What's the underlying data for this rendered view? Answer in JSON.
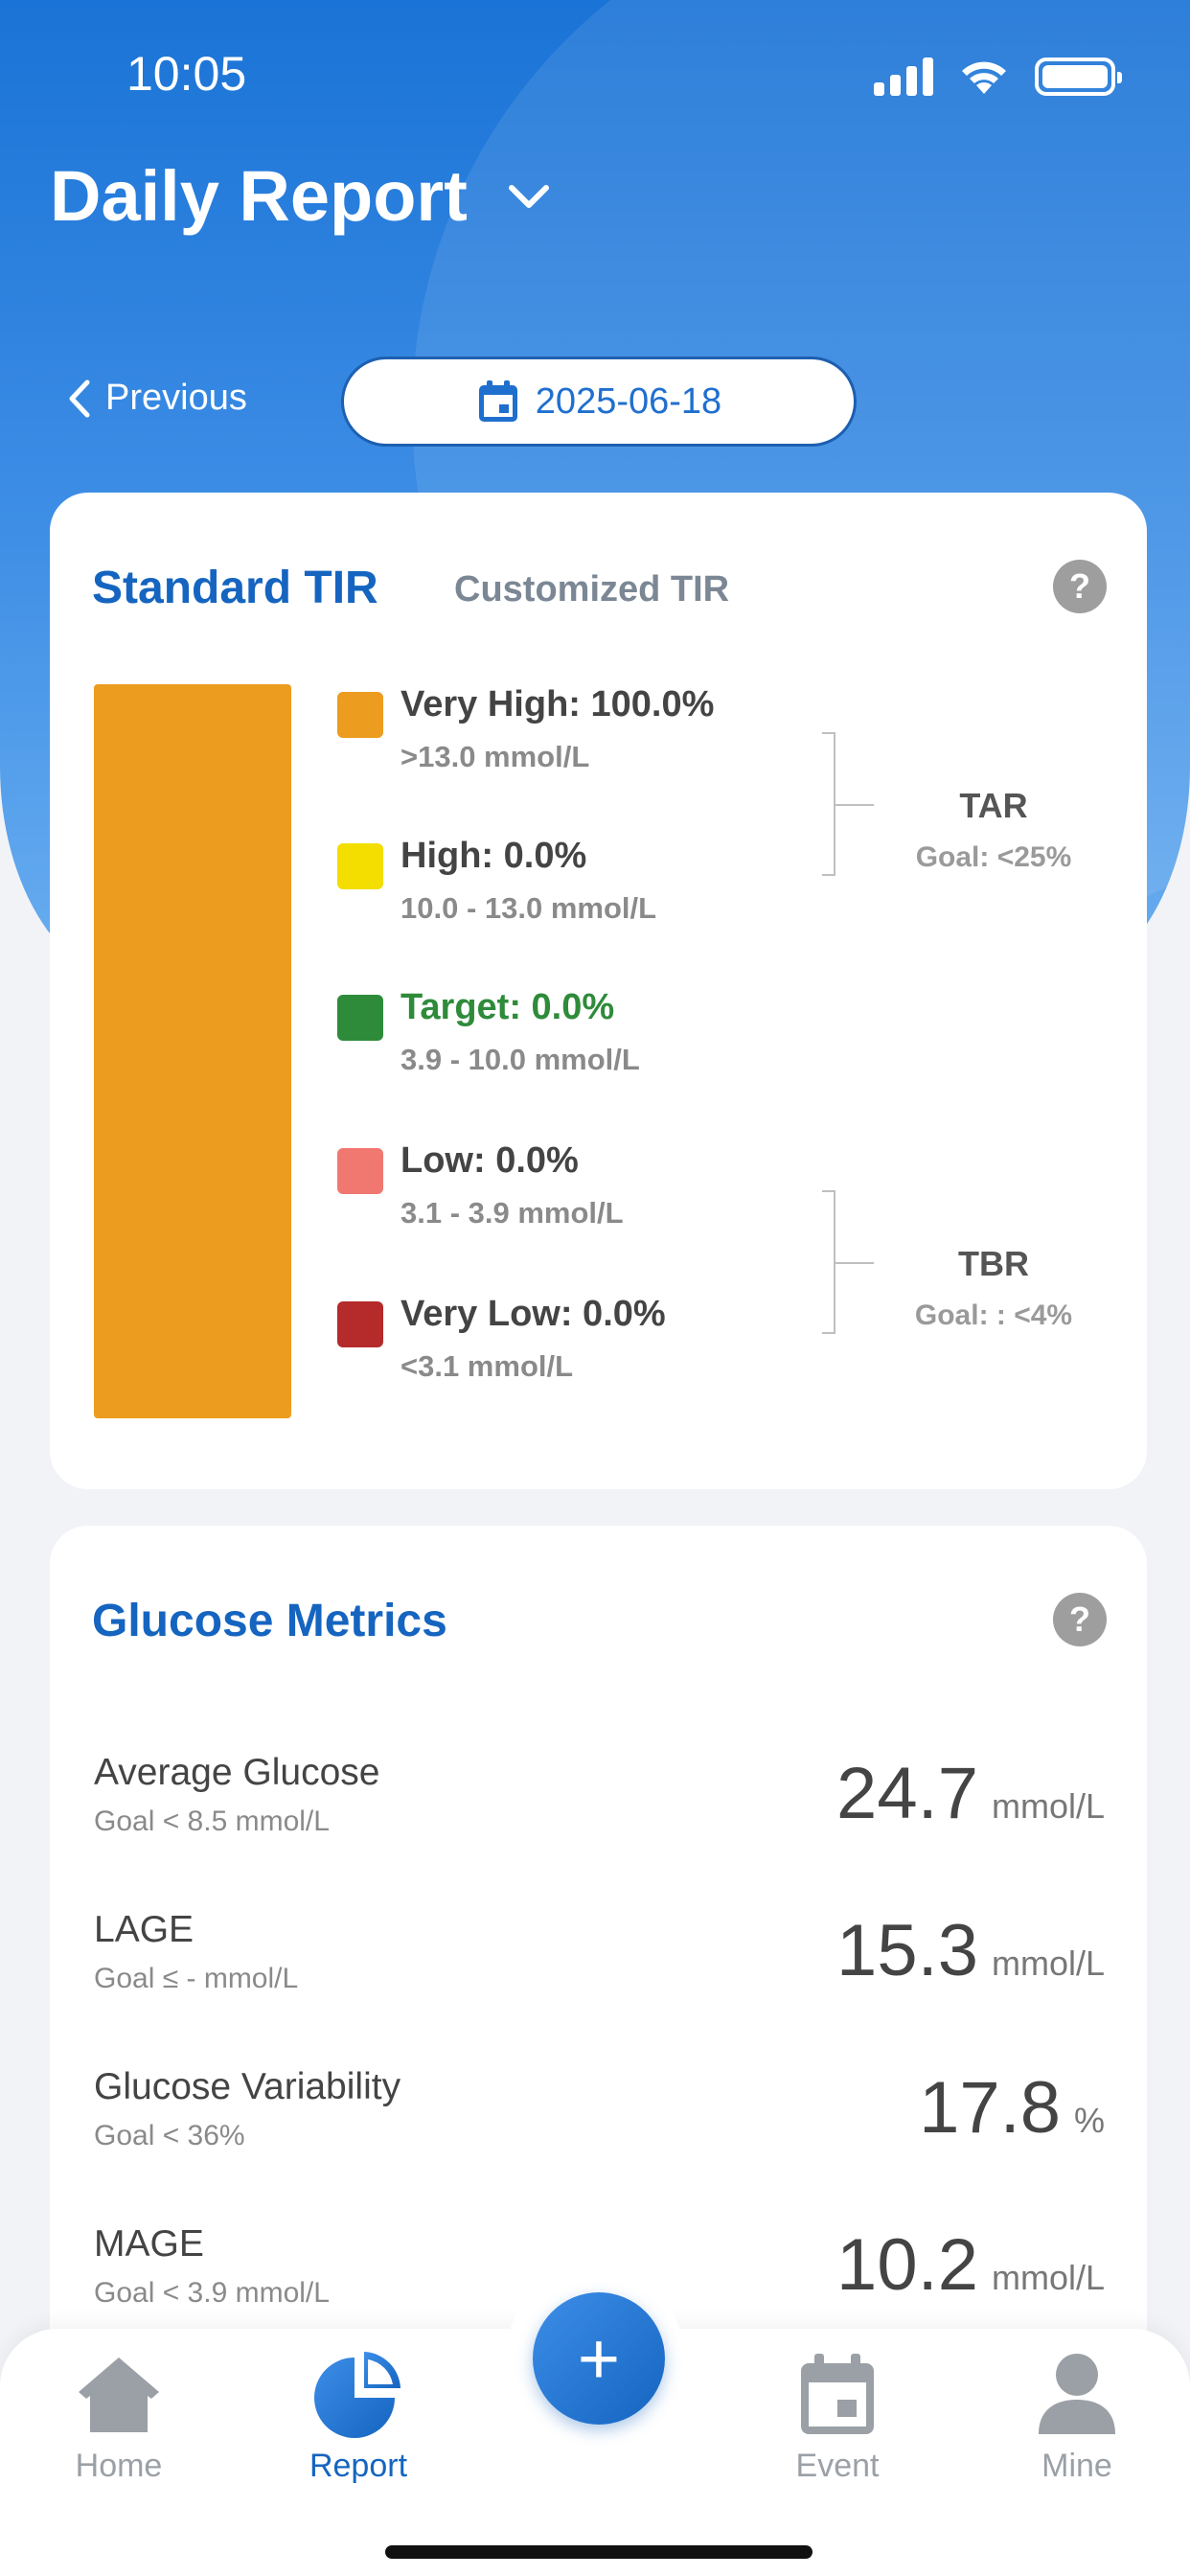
{
  "status_bar": {
    "time": "10:05"
  },
  "header": {
    "title": "Daily Report"
  },
  "nav": {
    "previous_label": "Previous",
    "date": "2025-06-18"
  },
  "tir_card": {
    "tab_standard": "Standard TIR",
    "tab_custom": "Customized TIR",
    "help": "?",
    "bar_color": "#ec9c1e",
    "bar_fill_percent": 100.0,
    "ranges": [
      {
        "label": "Very High: 100.0%",
        "range": ">13.0 mmol/L",
        "color": "#ec9c1e",
        "label_color": "#444444"
      },
      {
        "label": "High: 0.0%",
        "range": "10.0 - 13.0 mmol/L",
        "color": "#f3de00",
        "label_color": "#444444"
      },
      {
        "label": "Target: 0.0%",
        "range": "3.9 - 10.0 mmol/L",
        "color": "#2e8b3a",
        "label_color": "#2e8b3a"
      },
      {
        "label": "Low: 0.0%",
        "range": "3.1 - 3.9 mmol/L",
        "color": "#f07870",
        "label_color": "#444444"
      },
      {
        "label": "Very Low: 0.0%",
        "range": "<3.1 mmol/L",
        "color": "#b52a2a",
        "label_color": "#444444"
      }
    ],
    "groups": [
      {
        "name": "TAR",
        "goal": "Goal: <25%"
      },
      {
        "name": "TBR",
        "goal": "Goal: : <4%"
      }
    ]
  },
  "metrics_card": {
    "title": "Glucose Metrics",
    "help": "?",
    "rows": [
      {
        "name": "Average Glucose",
        "goal": "Goal < 8.5 mmol/L",
        "value": "24.7",
        "unit": "mmol/L"
      },
      {
        "name": "LAGE",
        "goal": "Goal ≤ - mmol/L",
        "value": "15.3",
        "unit": "mmol/L"
      },
      {
        "name": "Glucose Variability",
        "goal": "Goal < 36%",
        "value": "17.8",
        "unit": "%"
      },
      {
        "name": "MAGE",
        "goal": "Goal < 3.9 mmol/L",
        "value": "10.2",
        "unit": "mmol/L"
      }
    ]
  },
  "tabbar": {
    "fab_label": "+",
    "tabs": [
      {
        "label": "Home",
        "icon": "home-icon"
      },
      {
        "label": "Report",
        "icon": "pie-chart-icon",
        "active": true
      },
      {
        "label": "Event",
        "icon": "calendar-icon"
      },
      {
        "label": "Mine",
        "icon": "person-icon"
      }
    ]
  }
}
